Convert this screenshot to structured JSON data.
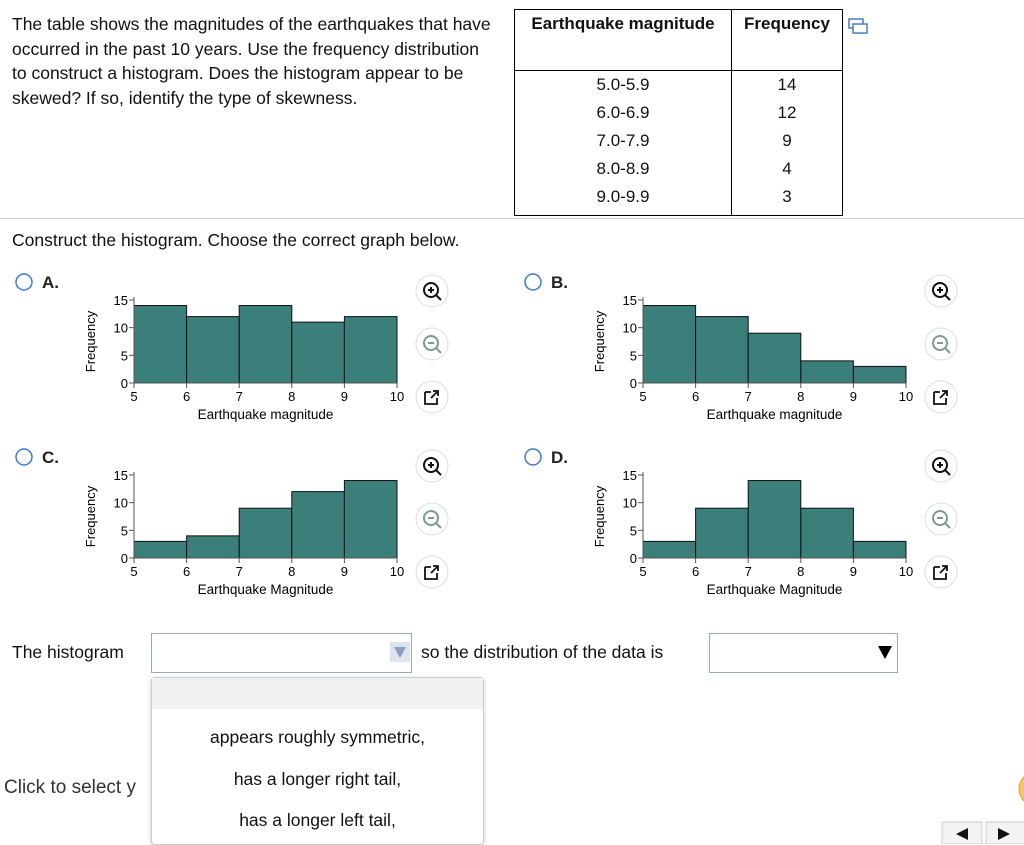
{
  "question": "The table shows the magnitudes of the earthquakes that have occurred in the past 10 years. Use the frequency distribution to construct a histogram. Does the histogram appear to be skewed? If so, identify the type of skewness.",
  "table": {
    "headers": [
      "Earthquake magnitude",
      "Frequency"
    ],
    "rows": [
      [
        "5.0-5.9",
        14
      ],
      [
        "6.0-6.9",
        12
      ],
      [
        "7.0-7.9",
        9
      ],
      [
        "8.0-8.9",
        4
      ],
      [
        "9.0-9.9",
        3
      ]
    ]
  },
  "instruction": "Construct the histogram. Choose the correct graph below.",
  "options": [
    {
      "label": "A.",
      "type": "histogram",
      "bins": [
        5,
        6,
        7,
        8,
        9,
        10
      ],
      "values": [
        14,
        12,
        14,
        11,
        12
      ],
      "color": "#3a7f79",
      "ylabel": "Frequency",
      "xlabel": "Earthquake magnitude",
      "ylim": [
        0,
        15
      ],
      "yticks": [
        0,
        5,
        10,
        15
      ],
      "xticks": [
        5,
        6,
        7,
        8,
        9,
        10
      ]
    },
    {
      "label": "B.",
      "type": "histogram",
      "bins": [
        5,
        6,
        7,
        8,
        9,
        10
      ],
      "values": [
        14,
        12,
        9,
        4,
        3
      ],
      "color": "#3a7f79",
      "ylabel": "Frequency",
      "xlabel": "Earthquake magnitude",
      "ylim": [
        0,
        15
      ],
      "yticks": [
        0,
        5,
        10,
        15
      ],
      "xticks": [
        5,
        6,
        7,
        8,
        9,
        10
      ]
    },
    {
      "label": "C.",
      "type": "histogram",
      "bins": [
        5,
        6,
        7,
        8,
        9,
        10
      ],
      "values": [
        3,
        4,
        9,
        12,
        14
      ],
      "color": "#3a7f79",
      "ylabel": "Frequency",
      "xlabel": "Earthquake Magnitude",
      "ylim": [
        0,
        15
      ],
      "yticks": [
        0,
        5,
        10,
        15
      ],
      "xticks": [
        5,
        6,
        7,
        8,
        9,
        10
      ]
    },
    {
      "label": "D.",
      "type": "histogram",
      "bins": [
        5,
        6,
        7,
        8,
        9,
        10
      ],
      "values": [
        3,
        9,
        14,
        9,
        3
      ],
      "color": "#3a7f79",
      "ylabel": "Frequency",
      "xlabel": "Earthquake Magnitude",
      "ylim": [
        0,
        15
      ],
      "yticks": [
        0,
        5,
        10,
        15
      ],
      "xticks": [
        5,
        6,
        7,
        8,
        9,
        10
      ]
    }
  ],
  "answer": {
    "prefix": "The histogram",
    "middle": "so the distribution of the data is",
    "choices": [
      "appears roughly symmetric,",
      "has a longer right tail,",
      "has a longer left tail,"
    ]
  },
  "footer": "Click to select y"
}
